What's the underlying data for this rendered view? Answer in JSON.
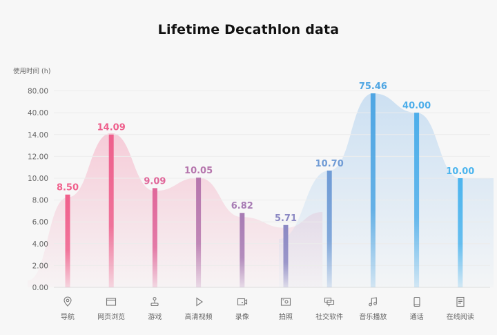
{
  "chart_data": {
    "type": "bar",
    "title": "Lifetime Decathlon data",
    "ylabel": "使用时间 (h)",
    "xlabel": "",
    "y_ticks": [
      0,
      2,
      4,
      6,
      8,
      10,
      12,
      14,
      40,
      80
    ],
    "y_tick_labels": [
      "0.00",
      "2.00",
      "4.00",
      "6.00",
      "8.00",
      "10.00",
      "12.00",
      "14.00",
      "40.00",
      "80.00"
    ],
    "y_scale": "piecewise (evenly spaced ticks)",
    "ylim": [
      0,
      80
    ],
    "grid": true,
    "categories": [
      "导航",
      "网页浏览",
      "游戏",
      "高清视频",
      "录像",
      "拍照",
      "社交软件",
      "音乐播放",
      "通话",
      "在线阅读"
    ],
    "values": [
      8.5,
      14.09,
      9.09,
      10.05,
      6.82,
      5.71,
      10.7,
      75.46,
      40.0,
      10.0
    ],
    "value_labels": [
      "8.50",
      "14.09",
      "9.09",
      "10.05",
      "6.82",
      "5.71",
      "10.70",
      "75.46",
      "40.00",
      "10.00"
    ],
    "icons": [
      "location-pin-icon",
      "browser-window-icon",
      "joystick-icon",
      "play-icon",
      "video-camera-icon",
      "camera-icon",
      "chat-bubbles-icon",
      "music-note-icon",
      "phone-icon",
      "document-icon"
    ],
    "colors": [
      "#f0608c",
      "#ee5f8c",
      "#e0679a",
      "#b676ad",
      "#a77bb4",
      "#8b88c3",
      "#6f9bd5",
      "#4fa6e3",
      "#4daeea",
      "#4db5ee"
    ]
  }
}
